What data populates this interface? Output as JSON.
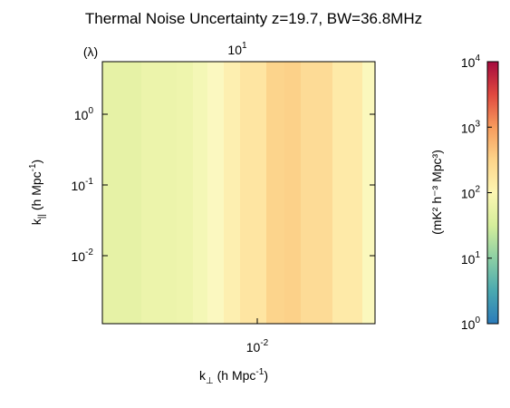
{
  "chart_data": {
    "type": "heatmap",
    "title": "Thermal Noise Uncertainty z=19.7, BW=36.8MHz",
    "top_axis": {
      "unit_label": "(λ)",
      "scale": "log",
      "ticks": [
        {
          "base": "10",
          "exp": "1"
        }
      ]
    },
    "xaxis": {
      "label_main": "k",
      "label_sub": "⊥",
      "label_units": " (h Mpc",
      "label_units_exp": "-1",
      "label_close": ")",
      "scale": "log",
      "ticks": [
        {
          "value": 0.01,
          "base": "10",
          "exp": "-2"
        }
      ]
    },
    "yaxis": {
      "label_main": "k",
      "label_sub": "||",
      "label_units": " (h Mpc",
      "label_units_exp": "-1",
      "label_close": ")",
      "scale": "log",
      "ticks": [
        {
          "value": 1,
          "base": "10",
          "exp": "0"
        },
        {
          "value": 0.1,
          "base": "10",
          "exp": "-1"
        },
        {
          "value": 0.01,
          "base": "10",
          "exp": "-2"
        }
      ]
    },
    "columns": [
      {
        "value": 30,
        "color": "#d3e5a0"
      },
      {
        "value": 38,
        "color": "#e6f2a6"
      },
      {
        "value": 42,
        "color": "#ecf4ab"
      },
      {
        "value": 45,
        "color": "#eef5ad"
      },
      {
        "value": 50,
        "color": "#f4f7b6"
      },
      {
        "value": 60,
        "color": "#fbf8c0"
      },
      {
        "value": 85,
        "color": "#fdefb0"
      },
      {
        "value": 110,
        "color": "#fee5a2"
      },
      {
        "value": 200,
        "color": "#fcd48c"
      },
      {
        "value": 220,
        "color": "#fcd189"
      },
      {
        "value": 160,
        "color": "#fddb96"
      },
      {
        "value": 90,
        "color": "#feeaa8"
      },
      {
        "value": 55,
        "color": "#fbf8bd"
      }
    ],
    "colorbar": {
      "label": "(mK² h⁻³ Mpc³)",
      "scale": "log",
      "range": [
        1,
        10000
      ],
      "ticks": [
        {
          "value": 1,
          "base": "10",
          "exp": "0"
        },
        {
          "value": 10,
          "base": "10",
          "exp": "1"
        },
        {
          "value": 100,
          "base": "10",
          "exp": "2"
        },
        {
          "value": 1000,
          "base": "10",
          "exp": "3"
        },
        {
          "value": 10000,
          "base": "10",
          "exp": "4"
        }
      ],
      "colors": [
        "#2b7bba",
        "#4aa9b0",
        "#8ccfa4",
        "#d5ee9b",
        "#fdf6b2",
        "#fdd48a",
        "#f79b5c",
        "#e0483f",
        "#a50a3e"
      ]
    }
  }
}
